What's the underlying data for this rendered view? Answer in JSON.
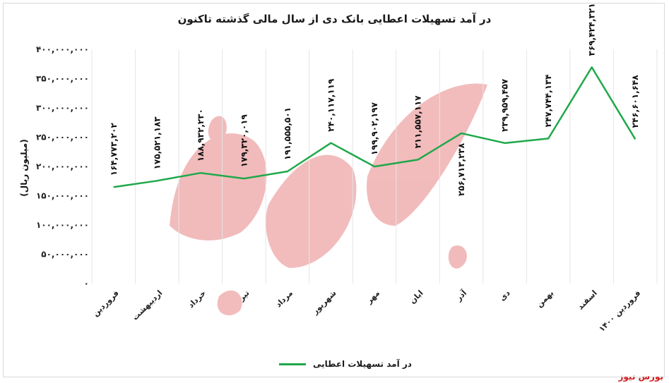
{
  "chart_data": {
    "type": "line",
    "title": "در آمد تسهیلات اعطایی بانک دی از سال مالی گذشته تاکنون",
    "ylabel": "(میلیون ریال)",
    "xlabel": "",
    "ylim": [
      0,
      400000000
    ],
    "y_ticks": [
      0,
      50000000,
      100000000,
      150000000,
      200000000,
      250000000,
      300000000,
      350000000,
      400000000
    ],
    "y_tick_labels": [
      "۰",
      "۵۰,۰۰۰,۰۰۰",
      "۱۰۰,۰۰۰,۰۰۰",
      "۱۵۰,۰۰۰,۰۰۰",
      "۲۰۰,۰۰۰,۰۰۰",
      "۲۵۰,۰۰۰,۰۰۰",
      "۳۰۰,۰۰۰,۰۰۰",
      "۳۵۰,۰۰۰,۰۰۰",
      "۴۰۰,۰۰۰,۰۰۰"
    ],
    "grid": "vertical",
    "legend": "bottom",
    "categories": [
      "فروردین",
      "اردیبهشت",
      "خرداد",
      "تیر",
      "مرداد",
      "شهریور",
      "مهر",
      "ابان",
      "آذر",
      "دی",
      "بهمن",
      "اسفند",
      "فروردین ۱۴۰۰"
    ],
    "series": [
      {
        "name": "در آمد تسهیلات اعطایی",
        "color": "#1fa84a",
        "values": [
          164773202,
          175521183,
          188932230,
          179320019,
          191555501,
          240117119,
          199902197,
          211557117,
          256713238,
          239959457,
          247744134,
          369424321,
          246601648
        ],
        "labels": [
          "۱۶۴,۷۷۳,۲۰۲",
          "۱۷۵,۵۲۱,۱۸۳",
          "۱۸۸,۹۳۲,۲۳۰",
          "۱۷۹,۳۲۰,۰۱۹",
          "۱۹۱,۵۵۵,۵۰۱",
          "۲۴۰,۱۱۷,۱۱۹",
          "۱۹۹,۹۰۲,۱۹۷",
          "۲۱۱,۵۵۷,۱۱۷",
          "۲۵۶,۷۱۳,۲۳۸",
          "۲۳۹,۹۵۹,۴۵۷",
          "۲۴۷,۷۴۴,۱۳۴",
          "۳۶۹,۴۲۴,۳۲۱",
          "۲۴۶,۶۰۱,۶۴۸"
        ]
      }
    ]
  },
  "watermark_text": "بورس نیوز",
  "brand": "بورس نیوز"
}
